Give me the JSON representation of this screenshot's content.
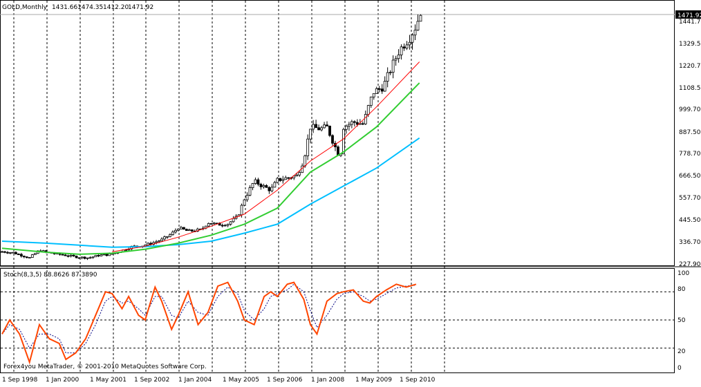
{
  "header": {
    "symbol": "GOLD,Monthly",
    "open": "1431.66",
    "high": "1474.35",
    "low": "1412.20",
    "close": "1471.92"
  },
  "price_axis": {
    "current_price": "1471.92",
    "labels": [
      "1441.70",
      "1329.50",
      "1220.70",
      "1108.50",
      "999.70",
      "887.50",
      "778.70",
      "666.50",
      "557.70",
      "445.50",
      "336.70",
      "227.90"
    ]
  },
  "indicator": {
    "label": "Stoch(8,3,5) 88.8626 87.3890",
    "levels": [
      "100",
      "80",
      "50",
      "20",
      "0"
    ]
  },
  "time_axis": {
    "labels": [
      "1 Sep 1998",
      "1 Jan 2000",
      "1 May 2001",
      "1 Sep 2002",
      "1 Jan 2004",
      "1 May 2005",
      "1 Sep 2006",
      "1 Jan 2008",
      "1 May 2009",
      "1 Sep 2010"
    ]
  },
  "footer": {
    "copyright": "Forex4you MetaTrader, © 2001-2010 MetaQuotes Software Corp."
  },
  "colors": {
    "background": "#ffffff",
    "candle": "#000000",
    "ma_fast": "#ff0000",
    "ma_medium": "#32cd32",
    "ma_slow": "#00bfff",
    "stoch_main": "#ff4500",
    "stoch_signal": "#000080"
  },
  "chart_data": {
    "type": "candlestick",
    "symbol": "GOLD",
    "timeframe": "Monthly",
    "start": "1998-09",
    "ohlc": [],
    "anchors": [
      [
        1998.67,
        293
      ],
      [
        1999.0,
        288
      ],
      [
        1999.5,
        262
      ],
      [
        1999.8,
        300
      ],
      [
        2000.0,
        290
      ],
      [
        2000.3,
        282
      ],
      [
        2000.7,
        272
      ],
      [
        2001.0,
        265
      ],
      [
        2001.3,
        262
      ],
      [
        2001.6,
        275
      ],
      [
        2001.9,
        278
      ],
      [
        2002.2,
        292
      ],
      [
        2002.6,
        318
      ],
      [
        2002.9,
        322
      ],
      [
        2003.2,
        335
      ],
      [
        2003.5,
        352
      ],
      [
        2003.8,
        382
      ],
      [
        2004.0,
        412
      ],
      [
        2004.3,
        395
      ],
      [
        2004.7,
        402
      ],
      [
        2004.9,
        438
      ],
      [
        2005.2,
        428
      ],
      [
        2005.5,
        432
      ],
      [
        2005.8,
        468
      ],
      [
        2006.0,
        555
      ],
      [
        2006.3,
        645
      ],
      [
        2006.5,
        625
      ],
      [
        2006.8,
        600
      ],
      [
        2007.0,
        650
      ],
      [
        2007.4,
        665
      ],
      [
        2007.6,
        672
      ],
      [
        2007.8,
        752
      ],
      [
        2008.0,
        915
      ],
      [
        2008.3,
        905
      ],
      [
        2008.5,
        915
      ],
      [
        2008.7,
        835
      ],
      [
        2008.9,
        760
      ],
      [
        2009.0,
        915
      ],
      [
        2009.3,
        940
      ],
      [
        2009.6,
        930
      ],
      [
        2009.8,
        1040
      ],
      [
        2009.92,
        1090
      ],
      [
        2010.2,
        1115
      ],
      [
        2010.5,
        1230
      ],
      [
        2010.7,
        1300
      ],
      [
        2011.0,
        1360
      ],
      [
        2011.2,
        1420
      ],
      [
        2011.3,
        1471.92
      ]
    ],
    "ma": {
      "fast": [
        [
          2002.0,
          292
        ],
        [
          2003.0,
          320
        ],
        [
          2004.0,
          365
        ],
        [
          2005.0,
          420
        ],
        [
          2006.0,
          480
        ],
        [
          2007.0,
          600
        ],
        [
          2008.0,
          745
        ],
        [
          2009.0,
          855
        ],
        [
          2010.0,
          1015
        ],
        [
          2011.3,
          1240
        ]
      ],
      "medium": [
        [
          1998.67,
          310
        ],
        [
          2000.0,
          290
        ],
        [
          2001.0,
          280
        ],
        [
          2002.0,
          285
        ],
        [
          2003.0,
          305
        ],
        [
          2004.0,
          335
        ],
        [
          2005.0,
          375
        ],
        [
          2006.0,
          430
        ],
        [
          2007.0,
          510
        ],
        [
          2008.0,
          690
        ],
        [
          2009.0,
          790
        ],
        [
          2010.0,
          915
        ],
        [
          2011.3,
          1135
        ]
      ],
      "slow": [
        [
          1998.67,
          345
        ],
        [
          2000.0,
          335
        ],
        [
          2001.0,
          325
        ],
        [
          2002.0,
          315
        ],
        [
          2003.0,
          318
        ],
        [
          2004.0,
          328
        ],
        [
          2005.0,
          345
        ],
        [
          2006.0,
          385
        ],
        [
          2007.0,
          430
        ],
        [
          2008.0,
          530
        ],
        [
          2009.0,
          620
        ],
        [
          2010.0,
          710
        ],
        [
          2011.3,
          860
        ]
      ]
    },
    "stochastic": {
      "main": [
        [
          1998.67,
          35
        ],
        [
          1998.9,
          50
        ],
        [
          1999.2,
          35
        ],
        [
          1999.5,
          5
        ],
        [
          1999.8,
          45
        ],
        [
          2000.1,
          30
        ],
        [
          2000.4,
          25
        ],
        [
          2000.6,
          8
        ],
        [
          2000.9,
          15
        ],
        [
          2001.2,
          30
        ],
        [
          2001.5,
          55
        ],
        [
          2001.8,
          80
        ],
        [
          2002.0,
          78
        ],
        [
          2002.3,
          62
        ],
        [
          2002.5,
          75
        ],
        [
          2002.8,
          55
        ],
        [
          2003.0,
          50
        ],
        [
          2003.3,
          85
        ],
        [
          2003.5,
          70
        ],
        [
          2003.8,
          40
        ],
        [
          2004.0,
          55
        ],
        [
          2004.3,
          80
        ],
        [
          2004.6,
          45
        ],
        [
          2004.9,
          58
        ],
        [
          2005.2,
          86
        ],
        [
          2005.5,
          90
        ],
        [
          2005.8,
          70
        ],
        [
          2006.0,
          50
        ],
        [
          2006.3,
          45
        ],
        [
          2006.6,
          75
        ],
        [
          2006.8,
          80
        ],
        [
          2007.0,
          75
        ],
        [
          2007.3,
          88
        ],
        [
          2007.5,
          90
        ],
        [
          2007.8,
          72
        ],
        [
          2008.0,
          45
        ],
        [
          2008.2,
          35
        ],
        [
          2008.5,
          70
        ],
        [
          2008.8,
          78
        ],
        [
          2009.0,
          80
        ],
        [
          2009.3,
          82
        ],
        [
          2009.6,
          70
        ],
        [
          2009.8,
          68
        ],
        [
          2010.0,
          75
        ],
        [
          2010.3,
          82
        ],
        [
          2010.6,
          88
        ],
        [
          2010.9,
          85
        ],
        [
          2011.2,
          88
        ]
      ],
      "signal": [
        [
          1998.67,
          35
        ],
        [
          1998.9,
          45
        ],
        [
          1999.2,
          40
        ],
        [
          1999.5,
          20
        ],
        [
          1999.8,
          35
        ],
        [
          2000.1,
          35
        ],
        [
          2000.4,
          30
        ],
        [
          2000.6,
          15
        ],
        [
          2000.9,
          15
        ],
        [
          2001.2,
          25
        ],
        [
          2001.5,
          45
        ],
        [
          2001.8,
          70
        ],
        [
          2002.0,
          75
        ],
        [
          2002.3,
          68
        ],
        [
          2002.5,
          70
        ],
        [
          2002.8,
          62
        ],
        [
          2003.0,
          55
        ],
        [
          2003.3,
          75
        ],
        [
          2003.5,
          75
        ],
        [
          2003.8,
          55
        ],
        [
          2004.0,
          52
        ],
        [
          2004.3,
          70
        ],
        [
          2004.6,
          58
        ],
        [
          2004.9,
          55
        ],
        [
          2005.2,
          75
        ],
        [
          2005.5,
          85
        ],
        [
          2005.8,
          78
        ],
        [
          2006.0,
          60
        ],
        [
          2006.3,
          50
        ],
        [
          2006.6,
          62
        ],
        [
          2006.8,
          75
        ],
        [
          2007.0,
          78
        ],
        [
          2007.3,
          82
        ],
        [
          2007.5,
          88
        ],
        [
          2007.8,
          80
        ],
        [
          2008.0,
          60
        ],
        [
          2008.2,
          42
        ],
        [
          2008.5,
          55
        ],
        [
          2008.8,
          72
        ],
        [
          2009.0,
          78
        ],
        [
          2009.3,
          80
        ],
        [
          2009.6,
          75
        ],
        [
          2009.8,
          70
        ],
        [
          2010.0,
          72
        ],
        [
          2010.3,
          78
        ],
        [
          2010.6,
          84
        ],
        [
          2010.9,
          86
        ],
        [
          2011.2,
          87
        ]
      ]
    },
    "xlabel": "",
    "ylabel": "",
    "grid": true
  }
}
